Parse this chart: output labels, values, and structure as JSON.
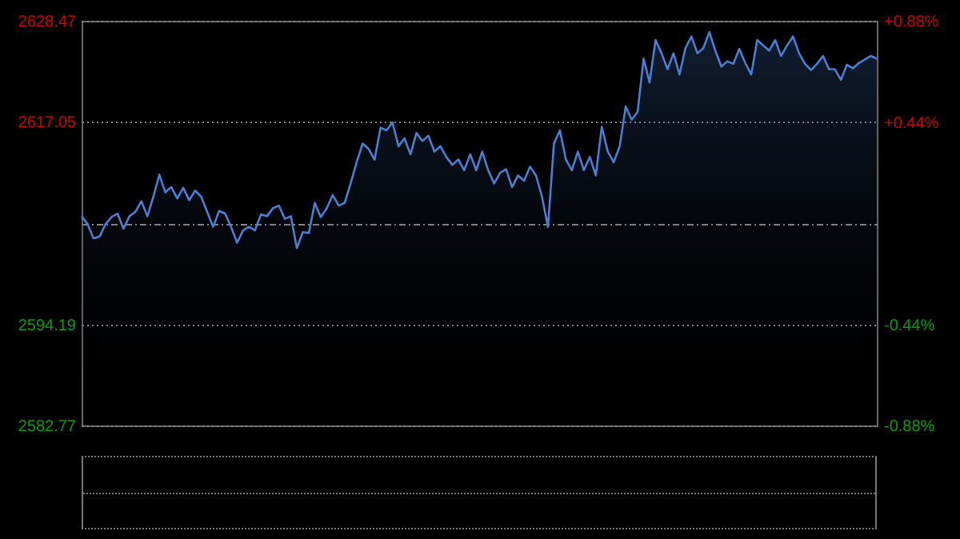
{
  "chart_data": {
    "type": "area",
    "categories": [
      null,
      null,
      null,
      null,
      null,
      null,
      null,
      null,
      null,
      null,
      null,
      null,
      null,
      null,
      null,
      null,
      null,
      null,
      null,
      null,
      null,
      null,
      null,
      null,
      null,
      null,
      null,
      null,
      null,
      null,
      null,
      null,
      null,
      null,
      null,
      null,
      null,
      null,
      null,
      null,
      null,
      null,
      null,
      null,
      null,
      null,
      null,
      null,
      null,
      null,
      null,
      null,
      null,
      null,
      null,
      null,
      null,
      null,
      null,
      null,
      null,
      null,
      null,
      null,
      null,
      null,
      null,
      null,
      null,
      null,
      null,
      null,
      null,
      null,
      null,
      null,
      null,
      null,
      null,
      null,
      null,
      null,
      null,
      null,
      null,
      null,
      null,
      null,
      null,
      null,
      null,
      null,
      null,
      null,
      null,
      null,
      null,
      null,
      null,
      null,
      null,
      null,
      null,
      null,
      null,
      null,
      null,
      null,
      null,
      null,
      null,
      null,
      null,
      null,
      null,
      null,
      null,
      null,
      null,
      null,
      null,
      null,
      null,
      null,
      null,
      null,
      null,
      null,
      null,
      null,
      null,
      null,
      null,
      null
    ],
    "series": [
      {
        "color": "#4a7fd4",
        "values": [
          2606.4,
          2605.5,
          2603.9,
          2604.1,
          2605.5,
          2606.3,
          2606.7,
          2605.0,
          2606.4,
          2606.9,
          2608.1,
          2606.4,
          2608.6,
          2611.1,
          2609.1,
          2609.7,
          2608.4,
          2609.6,
          2608.2,
          2609.3,
          2608.6,
          2606.9,
          2605.2,
          2607.0,
          2606.7,
          2605.2,
          2603.4,
          2604.8,
          2605.2,
          2604.8,
          2606.6,
          2606.4,
          2607.3,
          2607.6,
          2606.1,
          2606.4,
          2602.8,
          2604.6,
          2604.5,
          2607.9,
          2606.3,
          2607.3,
          2608.8,
          2607.6,
          2607.9,
          2610.1,
          2612.5,
          2614.6,
          2614.0,
          2612.8,
          2616.4,
          2616.1,
          2617.0,
          2614.3,
          2615.2,
          2613.4,
          2615.8,
          2614.9,
          2615.5,
          2613.7,
          2614.3,
          2613.1,
          2612.2,
          2612.8,
          2611.6,
          2613.4,
          2611.6,
          2613.7,
          2611.6,
          2610.1,
          2611.3,
          2611.7,
          2609.7,
          2611.0,
          2610.4,
          2612.0,
          2611.0,
          2608.6,
          2605.2,
          2614.6,
          2616.1,
          2612.8,
          2611.6,
          2613.7,
          2611.6,
          2613.1,
          2611.0,
          2616.5,
          2613.7,
          2612.5,
          2614.3,
          2618.8,
          2617.3,
          2618.2,
          2624.2,
          2621.5,
          2626.3,
          2624.8,
          2623.0,
          2624.8,
          2622.4,
          2625.4,
          2626.7,
          2624.8,
          2625.4,
          2627.2,
          2625.1,
          2623.3,
          2623.9,
          2623.6,
          2625.3,
          2623.7,
          2622.4,
          2626.3,
          2625.7,
          2625.1,
          2626.3,
          2624.5,
          2625.7,
          2626.7,
          2624.8,
          2623.6,
          2622.9,
          2623.6,
          2624.5,
          2623.0,
          2623.0,
          2621.8,
          2623.5,
          2623.1,
          2623.7,
          2624.1,
          2624.5,
          2624.2
        ]
      }
    ],
    "ylim": [
      2582.77,
      2628.47
    ],
    "yticks": [
      2582.77,
      2594.19,
      {
        "value": 2605.62,
        "label": null
      },
      2617.05,
      2628.47
    ],
    "y2lim": [
      -0.88,
      0.88
    ],
    "y2ticks": [
      {
        "value": -0.88,
        "label": "-0.88%"
      },
      {
        "value": -0.44,
        "label": "-0.44%"
      },
      {
        "value": 0,
        "label": null
      },
      {
        "value": 0.44,
        "label": "+0.44%"
      },
      {
        "value": 0.88,
        "label": "+0.88%"
      }
    ],
    "grid": "y"
  }
}
